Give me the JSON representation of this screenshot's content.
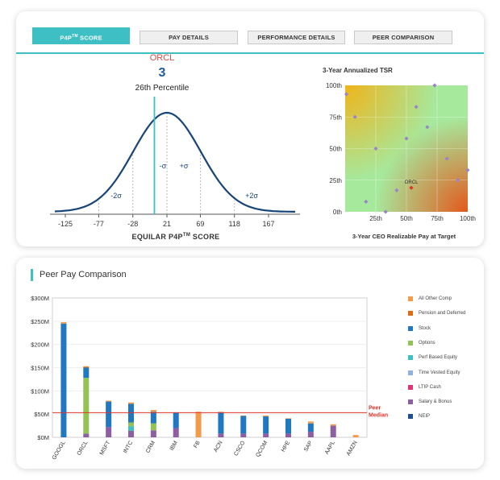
{
  "tabs": [
    {
      "label": "P4P",
      "sup": "TM",
      "suffix": " SCORE",
      "active": true
    },
    {
      "label": "PAY DETAILS"
    },
    {
      "label": "PERFORMANCE DETAILS"
    },
    {
      "label": "PEER COMPARISON"
    }
  ],
  "p4p": {
    "ticker": "ORCL",
    "score": "3",
    "percentile": "26th Percentile",
    "xlabel": "EQUILAR P4P",
    "xlabel_sup": "TM",
    "xlabel_suffix": " SCORE",
    "ticks": [
      "-125",
      "-77",
      "-28",
      "21",
      "69",
      "118",
      "167"
    ],
    "sigma_labels": [
      "-2σ",
      "-σ",
      "+σ",
      "+2σ"
    ],
    "score_value": 3,
    "colors": {
      "curve": "#17457a",
      "marker": "#3dbfc4",
      "ticker": "#e04a3f"
    }
  },
  "scatter": {
    "title": "3-Year Annualized TSR",
    "xlabel": "3-Year CEO Realizable Pay at Target",
    "x_ticks": [
      "25th",
      "50th",
      "75th",
      "100th"
    ],
    "y_ticks": [
      "100th",
      "75th",
      "50th",
      "25th",
      "0th"
    ],
    "highlight_label": "ORCL",
    "chart_data": {
      "type": "scatter",
      "xlabel": "3-Year CEO Realizable Pay at Target",
      "ylabel": "3-Year Annualized TSR",
      "xlim": [
        0,
        100
      ],
      "ylim": [
        0,
        100
      ],
      "points": [
        {
          "x": 1,
          "y": 93
        },
        {
          "x": 8,
          "y": 75
        },
        {
          "x": 17,
          "y": 8
        },
        {
          "x": 25,
          "y": 50
        },
        {
          "x": 33,
          "y": 0
        },
        {
          "x": 42,
          "y": 17
        },
        {
          "x": 50,
          "y": 58
        },
        {
          "x": 58,
          "y": 83
        },
        {
          "x": 67,
          "y": 67
        },
        {
          "x": 73,
          "y": 100
        },
        {
          "x": 83,
          "y": 42
        },
        {
          "x": 92,
          "y": 25
        },
        {
          "x": 100,
          "y": 33
        },
        {
          "x": 54,
          "y": 19,
          "label": "ORCL",
          "highlight": true
        }
      ]
    },
    "colors": {
      "point": "#9b84c8",
      "highlight": "#e0342a"
    }
  },
  "peer": {
    "title": "Peer Pay Comparison",
    "median_label": [
      "Peer",
      "Median"
    ],
    "y_ticks": [
      "$300M",
      "$250M",
      "$200M",
      "$150M",
      "$100M",
      "$50M",
      "$0M"
    ],
    "chart_data": {
      "type": "bar",
      "stacked": true,
      "ylim": [
        0,
        300
      ],
      "ylabel": "",
      "categories": [
        "GOOGL",
        "ORCL",
        "MSFT",
        "INTC",
        "CRM",
        "IBM",
        "FB",
        "ACN",
        "CSCO",
        "QCOM",
        "HPE",
        "SAP",
        "AAPL",
        "AMZN"
      ],
      "median": 53,
      "series": [
        {
          "name": "NEIP",
          "color": "#1d4f8c",
          "values": [
            0,
            0,
            0,
            0,
            0,
            0,
            0,
            0,
            0,
            0,
            0,
            0,
            0,
            0
          ]
        },
        {
          "name": "Salary & Bonus",
          "color": "#8e5ea2",
          "values": [
            0,
            8,
            22,
            14,
            15,
            20,
            0,
            8,
            8,
            8,
            8,
            12,
            25,
            0
          ]
        },
        {
          "name": "LTIP Cash",
          "color": "#e0337a",
          "values": [
            0,
            0,
            0,
            0,
            0,
            0,
            0,
            0,
            0,
            0,
            0,
            0,
            0,
            0
          ]
        },
        {
          "name": "Time Vested Equity",
          "color": "#8eb3dc",
          "values": [
            0,
            0,
            0,
            0,
            0,
            0,
            0,
            0,
            0,
            0,
            0,
            0,
            0,
            0
          ]
        },
        {
          "name": "Perf Based Equity",
          "color": "#3dbfc4",
          "values": [
            0,
            0,
            0,
            10,
            0,
            0,
            0,
            0,
            0,
            0,
            0,
            0,
            0,
            0
          ]
        },
        {
          "name": "Options",
          "color": "#92c454",
          "values": [
            0,
            120,
            0,
            8,
            15,
            0,
            0,
            0,
            0,
            0,
            0,
            0,
            0,
            0
          ]
        },
        {
          "name": "Stock",
          "color": "#1f78c1",
          "values": [
            245,
            22,
            55,
            40,
            25,
            33,
            0,
            45,
            38,
            37,
            32,
            18,
            0,
            0
          ]
        },
        {
          "name": "Pension and Deferred",
          "color": "#e06a16",
          "values": [
            0,
            2,
            0,
            0,
            0,
            0,
            0,
            0,
            0,
            0,
            0,
            0,
            0,
            0
          ]
        },
        {
          "name": "All Other Comp",
          "color": "#f39a4b",
          "values": [
            3,
            1,
            2,
            3,
            4,
            1,
            55,
            2,
            1,
            2,
            1,
            4,
            3,
            5
          ]
        }
      ]
    },
    "legend": [
      {
        "name": "All Other Comp",
        "color": "#f39a4b"
      },
      {
        "name": "Pension and Deferred",
        "color": "#e06a16"
      },
      {
        "name": "Stock",
        "color": "#1f78c1"
      },
      {
        "name": "Options",
        "color": "#92c454"
      },
      {
        "name": "Perf Based Equity",
        "color": "#3dbfc4"
      },
      {
        "name": "Time Vested Equity",
        "color": "#8eb3dc"
      },
      {
        "name": "LTIP Cash",
        "color": "#e0337a"
      },
      {
        "name": "Salary & Bonus",
        "color": "#8e5ea2"
      },
      {
        "name": "NEIP",
        "color": "#1d4f8c"
      }
    ],
    "colors": {
      "median": "#e0342a"
    }
  }
}
